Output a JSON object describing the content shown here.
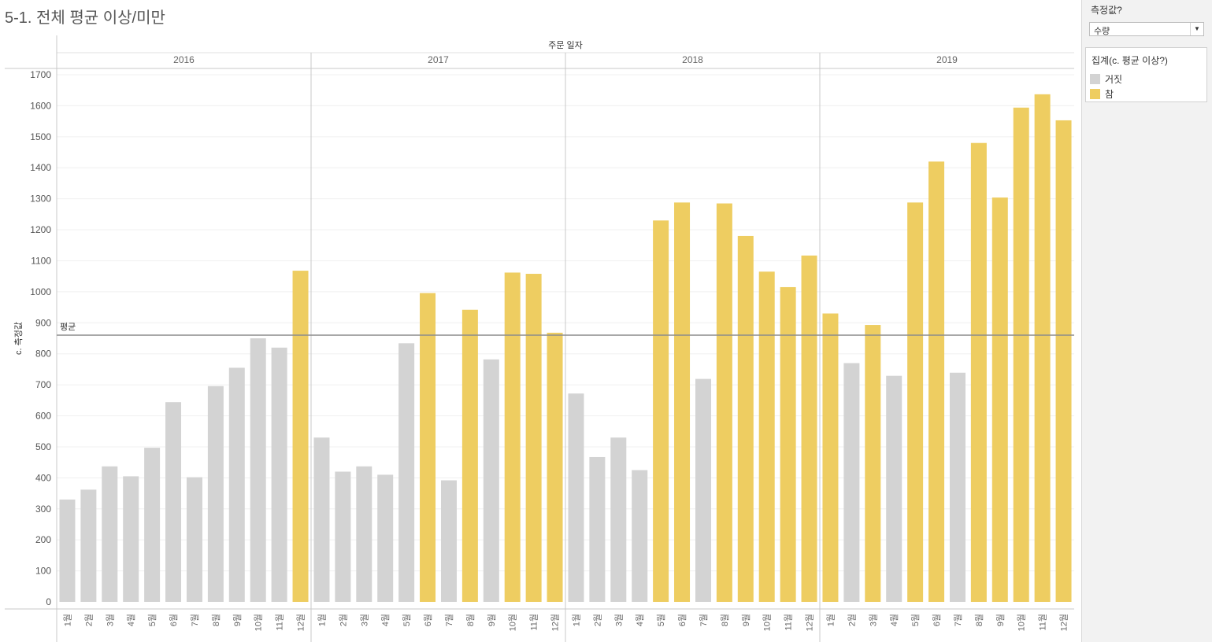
{
  "title": "5-1. 전체 평균 이상/미만",
  "parameter": {
    "label": "측정값?",
    "value": "수량"
  },
  "legend": {
    "title": "집계(c. 평균 이상?)",
    "items": [
      {
        "label": "거짓",
        "color": "#d3d3d3"
      },
      {
        "label": "참",
        "color": "#eecd61"
      }
    ]
  },
  "chart_data": {
    "type": "bar",
    "header_label": "주문 일자",
    "ylabel": "c. 측정값",
    "ylim": [
      0,
      1700
    ],
    "yticks": [
      0,
      100,
      200,
      300,
      400,
      500,
      600,
      700,
      800,
      900,
      1000,
      1100,
      1200,
      1300,
      1400,
      1500,
      1600,
      1700
    ],
    "reference_line": {
      "label": "평균",
      "value": 860
    },
    "month_labels": [
      "1월",
      "2월",
      "3월",
      "4월",
      "5월",
      "6월",
      "7월",
      "8월",
      "9월",
      "10월",
      "11월",
      "12월"
    ],
    "panes": [
      {
        "year": "2016",
        "values": [
          330,
          362,
          437,
          405,
          497,
          644,
          402,
          696,
          755,
          850,
          820,
          1068
        ]
      },
      {
        "year": "2017",
        "values": [
          530,
          420,
          437,
          410,
          834,
          996,
          392,
          942,
          782,
          1062,
          1058,
          868
        ]
      },
      {
        "year": "2018",
        "values": [
          672,
          467,
          530,
          425,
          1230,
          1288,
          719,
          1285,
          1180,
          1065,
          1015,
          1117
        ]
      },
      {
        "year": "2019",
        "values": [
          930,
          770,
          893,
          729,
          1288,
          1420,
          739,
          1480,
          1304,
          1594,
          1637,
          1553
        ]
      }
    ],
    "colors": {
      "below": "#d3d3d3",
      "above": "#eecd61"
    },
    "grid": true
  }
}
